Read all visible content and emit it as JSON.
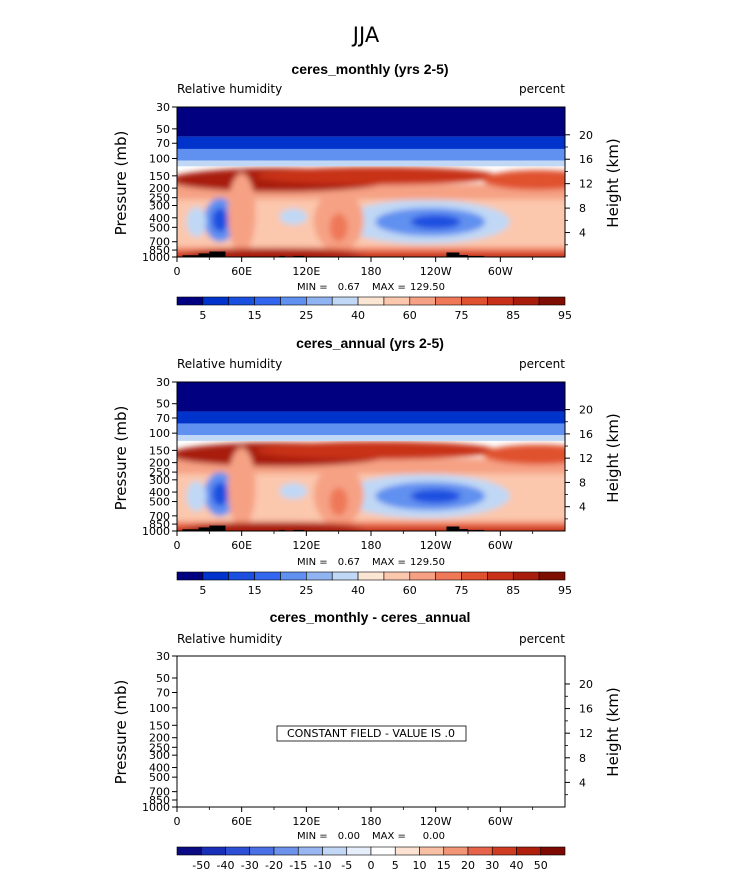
{
  "figure_title": "JJA",
  "colors": {
    "rh": [
      "#000080",
      "#0033cc",
      "#1a4fe0",
      "#3366ee",
      "#6090f0",
      "#90b4f2",
      "#c0d8f5",
      "#fbe6d4",
      "#fbc7ad",
      "#f6a184",
      "#ef7858",
      "#e0512f",
      "#c83019",
      "#a81c0c",
      "#7e0e02"
    ],
    "diff": [
      "#0a0a82",
      "#1a2fb8",
      "#2d4fd6",
      "#4a70e6",
      "#6d92ec",
      "#98b6f0",
      "#c2d6f5",
      "#e6eefb",
      "#ffffff",
      "#fbe2d2",
      "#f7bfa4",
      "#f29576",
      "#e6654a",
      "#cf3c22",
      "#b01e0c",
      "#7c0a02"
    ],
    "fill_black": "#000000"
  },
  "chart_data": [
    {
      "type": "heatmap",
      "title": "ceres_monthly (yrs 2-5)",
      "left_label": "Relative humidity",
      "right_label": "percent",
      "ylabel": "Pressure (mb)",
      "ylabel_right": "Height (km)",
      "x_ticks": [
        "0",
        "60E",
        "120E",
        "180",
        "120W",
        "60W"
      ],
      "x_tick_values": [
        0,
        60,
        120,
        180,
        240,
        300
      ],
      "xlim": [
        0,
        360
      ],
      "y_ticks": [
        "30",
        "50",
        "70",
        "100",
        "150",
        "200",
        "250",
        "300",
        "400",
        "500",
        "700",
        "850",
        "1000"
      ],
      "y_tick_values": [
        30,
        50,
        70,
        100,
        150,
        200,
        250,
        300,
        400,
        500,
        700,
        850,
        1000
      ],
      "ylim": [
        1000,
        30
      ],
      "y_right_ticks": [
        "20",
        "16",
        "12",
        "8",
        "4"
      ],
      "y_right_values_km": [
        20,
        16,
        12,
        8,
        4
      ],
      "min_label": "MIN =",
      "min_value": "0.67",
      "max_label": "MAX =",
      "max_value": "129.50",
      "colorbar_labels": [
        "5",
        "15",
        "25",
        "40",
        "60",
        "75",
        "85",
        "95"
      ],
      "colorbar_levels": [
        5,
        10,
        15,
        20,
        25,
        30,
        40,
        50,
        60,
        70,
        75,
        80,
        85,
        90,
        95
      ]
    },
    {
      "type": "heatmap",
      "title": "ceres_annual (yrs 2-5)",
      "left_label": "Relative humidity",
      "right_label": "percent",
      "ylabel": "Pressure (mb)",
      "ylabel_right": "Height (km)",
      "x_ticks": [
        "0",
        "60E",
        "120E",
        "180",
        "120W",
        "60W"
      ],
      "x_tick_values": [
        0,
        60,
        120,
        180,
        240,
        300
      ],
      "xlim": [
        0,
        360
      ],
      "y_ticks": [
        "30",
        "50",
        "70",
        "100",
        "150",
        "200",
        "250",
        "300",
        "400",
        "500",
        "700",
        "850",
        "1000"
      ],
      "y_tick_values": [
        30,
        50,
        70,
        100,
        150,
        200,
        250,
        300,
        400,
        500,
        700,
        850,
        1000
      ],
      "ylim": [
        1000,
        30
      ],
      "y_right_ticks": [
        "20",
        "16",
        "12",
        "8",
        "4"
      ],
      "y_right_values_km": [
        20,
        16,
        12,
        8,
        4
      ],
      "min_label": "MIN =",
      "min_value": "0.67",
      "max_label": "MAX =",
      "max_value": "129.50",
      "colorbar_labels": [
        "5",
        "15",
        "25",
        "40",
        "60",
        "75",
        "85",
        "95"
      ],
      "colorbar_levels": [
        5,
        10,
        15,
        20,
        25,
        30,
        40,
        50,
        60,
        70,
        75,
        80,
        85,
        90,
        95
      ]
    },
    {
      "type": "heatmap",
      "title": "ceres_monthly - ceres_annual",
      "left_label": "Relative humidity",
      "right_label": "percent",
      "ylabel": "Pressure (mb)",
      "ylabel_right": "Height (km)",
      "x_ticks": [
        "0",
        "60E",
        "120E",
        "180",
        "120W",
        "60W"
      ],
      "x_tick_values": [
        0,
        60,
        120,
        180,
        240,
        300
      ],
      "xlim": [
        0,
        360
      ],
      "y_ticks": [
        "30",
        "50",
        "70",
        "100",
        "150",
        "200",
        "250",
        "300",
        "400",
        "500",
        "700",
        "850",
        "1000"
      ],
      "y_tick_values": [
        30,
        50,
        70,
        100,
        150,
        200,
        250,
        300,
        400,
        500,
        700,
        850,
        1000
      ],
      "ylim": [
        1000,
        30
      ],
      "y_right_ticks": [
        "20",
        "16",
        "12",
        "8",
        "4"
      ],
      "y_right_values_km": [
        20,
        16,
        12,
        8,
        4
      ],
      "min_label": "MIN =",
      "min_value": "0.00",
      "max_label": "MAX =",
      "max_value": "0.00",
      "constant_field_note": "CONSTANT FIELD - VALUE IS .0",
      "colorbar_labels": [
        "-50",
        "-40",
        "-30",
        "-20",
        "-15",
        "-10",
        "-5",
        "0",
        "5",
        "10",
        "15",
        "20",
        "30",
        "40",
        "50"
      ],
      "colorbar_levels": [
        -50,
        -40,
        -30,
        -20,
        -15,
        -10,
        -5,
        0,
        5,
        10,
        15,
        20,
        30,
        40,
        50
      ]
    }
  ]
}
